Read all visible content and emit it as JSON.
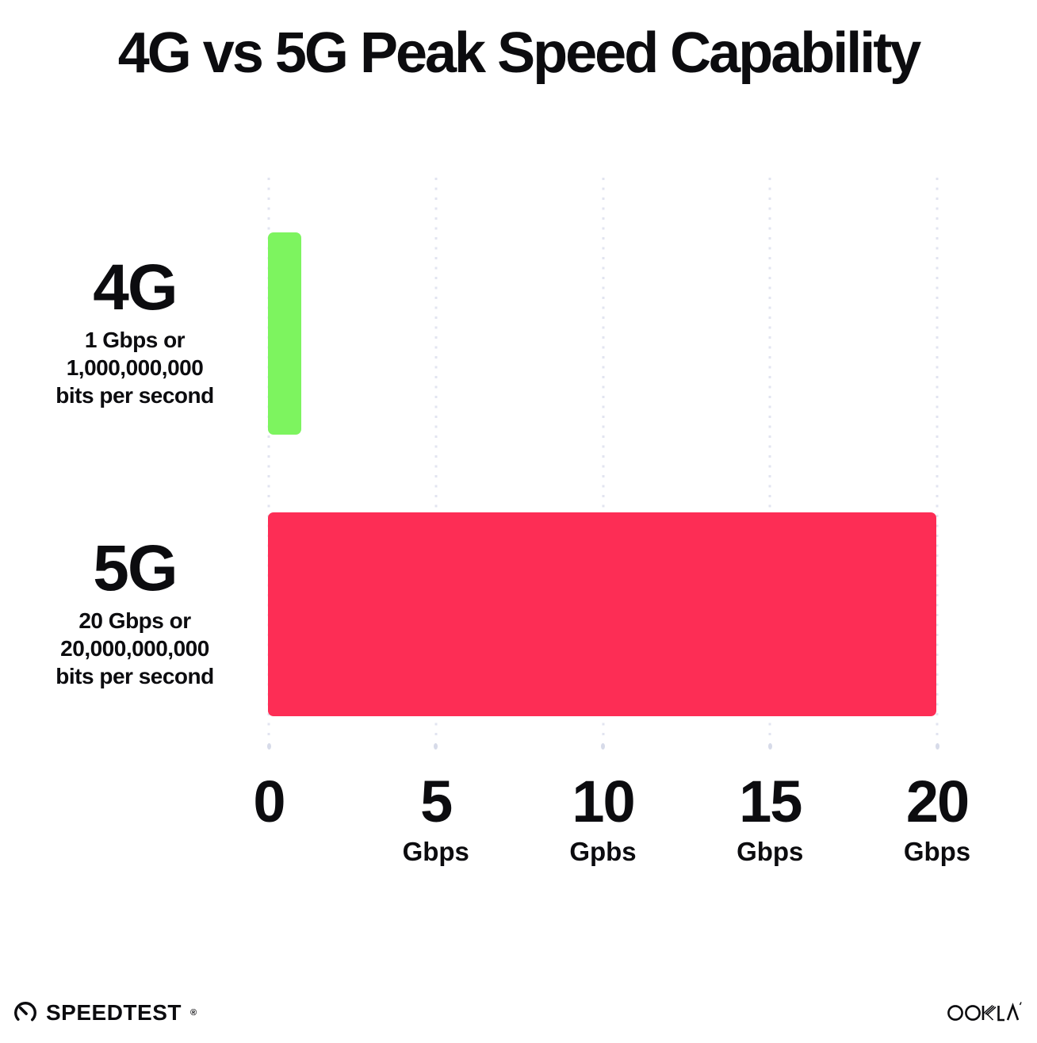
{
  "chart_data": {
    "type": "bar",
    "orientation": "horizontal",
    "title": "4G vs 5G Peak Speed Capability",
    "xlabel": "",
    "ylabel": "",
    "xlim": [
      0,
      20
    ],
    "unit": "Gbps",
    "grid": "vertical-dotted",
    "legend": "none",
    "rows": [
      {
        "label": "4G",
        "desc_line1": "1 Gbps or",
        "desc_line2": "1,000,000,000",
        "desc_line3": "bits per second",
        "value": 1,
        "color": "#7df45f"
      },
      {
        "label": "5G",
        "desc_line1": "20 Gbps or",
        "desc_line2": "20,000,000,000",
        "desc_line3": "bits per second",
        "value": 20,
        "color": "#fd2d55"
      }
    ],
    "x_ticks": [
      {
        "value": 0,
        "label": "0",
        "unit": ""
      },
      {
        "value": 5,
        "label": "5",
        "unit": "Gbps"
      },
      {
        "value": 10,
        "label": "10",
        "unit": "Gpbs"
      },
      {
        "value": 15,
        "label": "15",
        "unit": "Gbps"
      },
      {
        "value": 20,
        "label": "20",
        "unit": "Gbps"
      }
    ]
  },
  "footer": {
    "speedtest_label": "SPEEDTEST",
    "speedtest_mark": "®",
    "ookla_label": "OOKLA"
  },
  "colors": {
    "bar_4g": "#7df45f",
    "bar_5g": "#fd2d55",
    "grid_dot": "#e2e4f0",
    "grid_dot_end": "#d7dbe9",
    "text": "#0c0c0f",
    "background": "#ffffff"
  }
}
